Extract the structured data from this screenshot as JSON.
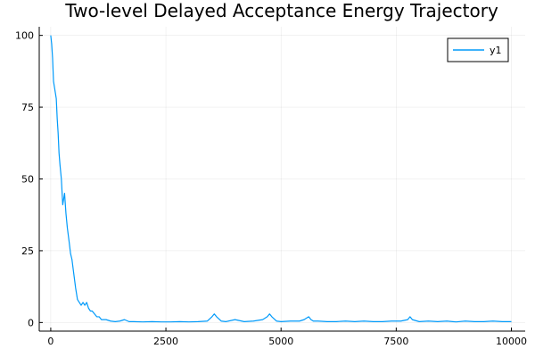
{
  "chart_data": {
    "type": "line",
    "title": "Two-level Delayed Acceptance Energy Trajectory",
    "xlabel": "",
    "ylabel": "",
    "xlim": [
      -250,
      10300
    ],
    "ylim": [
      -3,
      103
    ],
    "xticks": [
      0,
      2500,
      5000,
      7500,
      10000
    ],
    "xtick_labels": [
      "0",
      "2500",
      "5000",
      "7500",
      "10000"
    ],
    "yticks": [
      0,
      25,
      50,
      75,
      100
    ],
    "ytick_labels": [
      "0",
      "25",
      "50",
      "75",
      "100"
    ],
    "grid": true,
    "legend_position": "top-right",
    "series": [
      {
        "name": "y1",
        "color": "#009AFA",
        "x": [
          0,
          20,
          40,
          60,
          80,
          100,
          120,
          140,
          160,
          180,
          200,
          230,
          260,
          300,
          330,
          360,
          400,
          430,
          460,
          500,
          540,
          580,
          620,
          660,
          700,
          740,
          780,
          820,
          860,
          900,
          950,
          1000,
          1050,
          1100,
          1150,
          1200,
          1300,
          1400,
          1500,
          1600,
          1700,
          1800,
          2000,
          2200,
          2400,
          2600,
          2800,
          3000,
          3200,
          3400,
          3500,
          3550,
          3600,
          3700,
          3800,
          4000,
          4200,
          4400,
          4600,
          4700,
          4750,
          4800,
          4900,
          5000,
          5200,
          5400,
          5500,
          5600,
          5650,
          5700,
          5800,
          6000,
          6200,
          6400,
          6600,
          6800,
          7000,
          7200,
          7400,
          7600,
          7750,
          7800,
          7850,
          8000,
          8200,
          8400,
          8600,
          8800,
          9000,
          9200,
          9400,
          9600,
          9800,
          10000
        ],
        "y": [
          100,
          97,
          92,
          84,
          82,
          80,
          78,
          71,
          66,
          59,
          55,
          50,
          41,
          45,
          38,
          33,
          28,
          24,
          22,
          17,
          12,
          8,
          7,
          6,
          7,
          6,
          7,
          5,
          4,
          4,
          3,
          2,
          2,
          1,
          1,
          1,
          0.5,
          0.3,
          0.5,
          1,
          0.3,
          0.3,
          0.2,
          0.3,
          0.2,
          0.2,
          0.3,
          0.2,
          0.3,
          0.5,
          2,
          3,
          2,
          0.5,
          0.3,
          1,
          0.3,
          0.5,
          1,
          2,
          3,
          2,
          0.5,
          0.3,
          0.5,
          0.5,
          1,
          2,
          1,
          0.5,
          0.5,
          0.3,
          0.3,
          0.5,
          0.3,
          0.5,
          0.3,
          0.3,
          0.5,
          0.5,
          1,
          2,
          1,
          0.3,
          0.5,
          0.3,
          0.5,
          0.2,
          0.5,
          0.3,
          0.3,
          0.5,
          0.3,
          0.3
        ]
      }
    ]
  }
}
